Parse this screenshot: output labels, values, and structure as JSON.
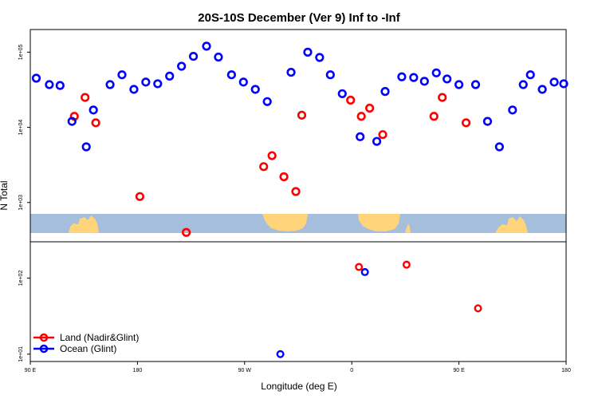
{
  "chart_data": {
    "type": "scatter",
    "title": "20S-10S December (Ver 9)   Inf to -Inf",
    "xlabel": "Longitude (deg E)",
    "ylabel": "N Total",
    "x_axis": {
      "ticks": [
        {
          "pos": 90,
          "label": "90 E"
        },
        {
          "pos": 180,
          "label": "180"
        },
        {
          "pos": 270,
          "label": "90 W"
        },
        {
          "pos": 360,
          "label": "0"
        },
        {
          "pos": 450,
          "label": "90 E"
        },
        {
          "pos": 540,
          "label": "180"
        }
      ],
      "range": [
        90,
        540
      ]
    },
    "y_axis": {
      "scale": "log",
      "upper_panel": {
        "range": [
          300,
          200000
        ],
        "ticks": [
          {
            "v": 1000,
            "label": "1e+03"
          },
          {
            "v": 10000,
            "label": "1e+04"
          },
          {
            "v": 100000,
            "label": "1e+05"
          }
        ]
      },
      "lower_panel": {
        "range": [
          8,
          300
        ],
        "ticks": [
          {
            "v": 10,
            "label": "1e+01"
          },
          {
            "v": 100,
            "label": "1e+02"
          }
        ]
      }
    },
    "map_strip": {
      "ocean_color": "#a4bedc",
      "land_color": "#ffd47a"
    },
    "series": [
      {
        "name": "Land (Nadir&Glint)",
        "color": "#ff0000",
        "x": [
          127,
          136,
          145,
          182,
          221,
          286,
          293,
          303,
          313,
          318,
          359,
          366,
          368,
          375,
          386,
          406,
          429,
          436,
          456,
          466
        ],
        "y": [
          14000,
          25000,
          11500,
          1200,
          400,
          3000,
          4200,
          2200,
          1400,
          14500,
          23000,
          140,
          14000,
          18000,
          8000,
          150,
          14000,
          25000,
          11500,
          40
        ]
      },
      {
        "name": "Ocean (Glint)",
        "color": "#0000ff",
        "x": [
          95,
          106,
          115,
          125,
          137,
          143,
          157,
          167,
          177,
          187,
          197,
          207,
          217,
          227,
          238,
          248,
          259,
          269,
          279,
          289,
          300,
          309,
          323,
          333,
          342,
          352,
          367,
          371,
          381,
          388,
          402,
          412,
          421,
          431,
          440,
          450,
          464,
          474,
          484,
          495,
          504,
          510,
          520,
          530,
          538
        ],
        "y": [
          45000,
          37000,
          36000,
          12000,
          5500,
          17000,
          37000,
          50000,
          32000,
          40000,
          38000,
          48000,
          65000,
          88000,
          120000,
          86000,
          50000,
          40000,
          32000,
          22000,
          10,
          54000,
          100000,
          85000,
          50000,
          28000,
          7500,
          120,
          6500,
          30000,
          47000,
          46000,
          41000,
          53000,
          44000,
          37000,
          37000,
          12000,
          5500,
          17000,
          37000,
          50000,
          32000,
          40000,
          38000
        ]
      }
    ],
    "legend_position": "bottom-left"
  }
}
